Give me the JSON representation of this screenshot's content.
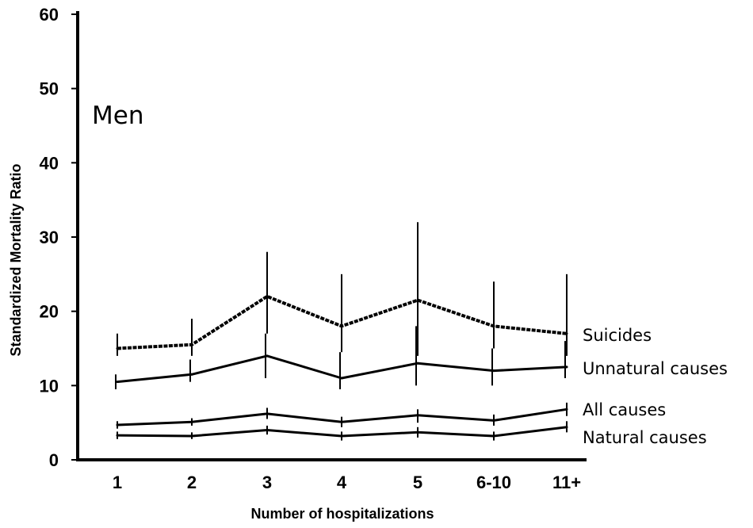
{
  "chart_data": {
    "type": "line",
    "title": "",
    "panel_label": "Men",
    "xlabel": "Number of hospitalizations",
    "ylabel": "Standardized Mortality Ratio",
    "categories": [
      "1",
      "2",
      "3",
      "4",
      "5",
      "6-10",
      "11+"
    ],
    "ylim": [
      0,
      60
    ],
    "yticks": [
      0,
      10,
      20,
      30,
      40,
      50,
      60
    ],
    "grid": false,
    "legend": "labels at right end of lines",
    "series": [
      {
        "name": "Suicides",
        "style": "dotted",
        "values": [
          15.0,
          15.5,
          22.0,
          18.0,
          21.5,
          18.0,
          17.0
        ],
        "ci_low": [
          14.0,
          14.0,
          17.0,
          14.5,
          14.0,
          15.0,
          14.0
        ],
        "ci_high": [
          17.0,
          19.0,
          28.0,
          25.0,
          32.0,
          24.0,
          25.0
        ]
      },
      {
        "name": "Unnatural causes",
        "style": "solid",
        "values": [
          10.5,
          11.5,
          14.0,
          11.0,
          13.0,
          12.0,
          12.5
        ],
        "ci_low": [
          9.5,
          10.5,
          11.0,
          9.5,
          10.0,
          10.0,
          11.0
        ],
        "ci_high": [
          11.5,
          13.5,
          17.0,
          14.5,
          18.0,
          15.0,
          16.0
        ]
      },
      {
        "name": "All causes",
        "style": "solid",
        "values": [
          4.7,
          5.1,
          6.2,
          5.1,
          6.0,
          5.3,
          6.8
        ],
        "ci_low": [
          4.2,
          4.6,
          5.5,
          4.4,
          5.0,
          4.6,
          5.9
        ],
        "ci_high": [
          5.2,
          5.6,
          7.0,
          5.8,
          6.8,
          6.1,
          7.7
        ]
      },
      {
        "name": "Natural causes",
        "style": "solid",
        "values": [
          3.3,
          3.2,
          4.0,
          3.2,
          3.7,
          3.2,
          4.4
        ],
        "ci_low": [
          2.8,
          2.8,
          3.4,
          2.6,
          3.0,
          2.6,
          3.7
        ],
        "ci_high": [
          3.8,
          3.7,
          4.6,
          3.8,
          4.4,
          3.8,
          5.2
        ]
      }
    ]
  },
  "colors": {
    "line": "#000000",
    "background": "#ffffff"
  }
}
